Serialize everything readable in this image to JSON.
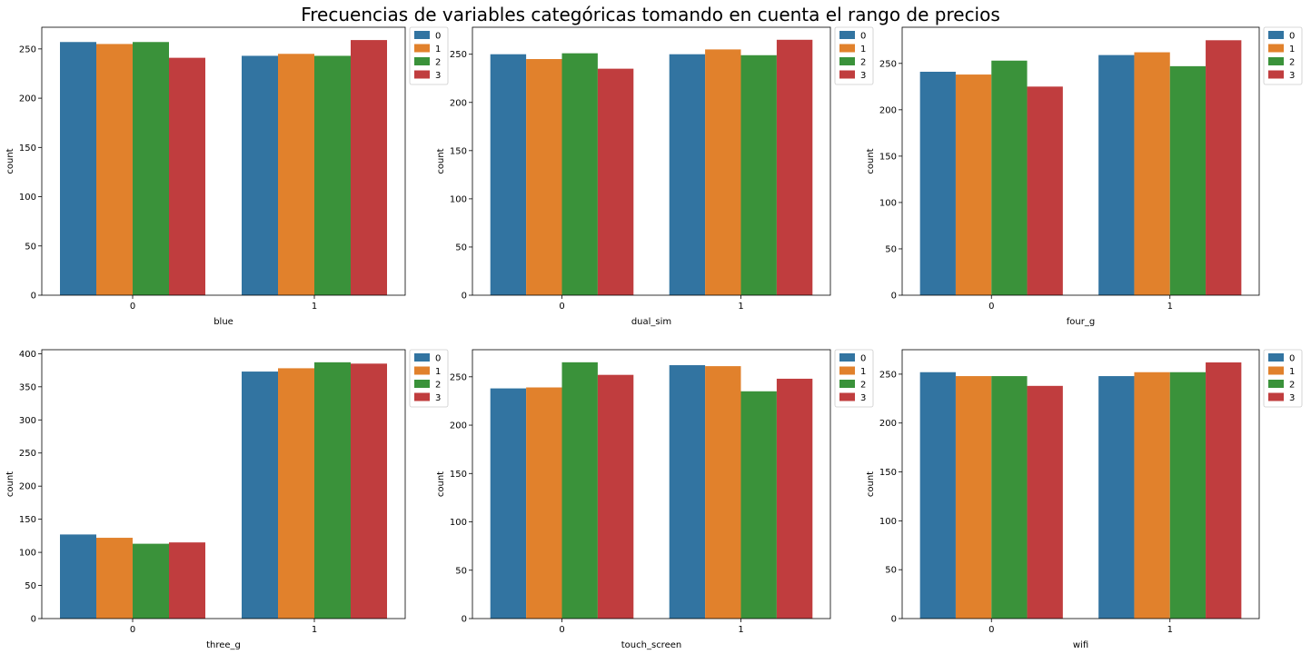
{
  "figure_title": "Frecuencias de variables categóricas tomando en cuenta el rango de precios",
  "colors": [
    "#3274a1",
    "#e1812c",
    "#3a923a",
    "#c03d3e"
  ],
  "chart_data": [
    {
      "type": "bar",
      "xlabel": "blue",
      "ylabel": "count",
      "categories": [
        "0",
        "1"
      ],
      "ylim": [
        0,
        272
      ],
      "yticks": [
        0,
        50,
        100,
        150,
        200,
        250
      ],
      "legend": {
        "placement": "outside-top-right",
        "entries": [
          "0",
          "1",
          "2",
          "3"
        ]
      },
      "series": [
        {
          "name": "0",
          "values": [
            257,
            243
          ]
        },
        {
          "name": "1",
          "values": [
            255,
            245
          ]
        },
        {
          "name": "2",
          "values": [
            257,
            243
          ]
        },
        {
          "name": "3",
          "values": [
            241,
            259
          ]
        }
      ]
    },
    {
      "type": "bar",
      "xlabel": "dual_sim",
      "ylabel": "count",
      "categories": [
        "0",
        "1"
      ],
      "ylim": [
        0,
        278
      ],
      "yticks": [
        0,
        50,
        100,
        150,
        200,
        250
      ],
      "legend": {
        "placement": "outside-top-right",
        "entries": [
          "0",
          "1",
          "2",
          "3"
        ]
      },
      "series": [
        {
          "name": "0",
          "values": [
            250,
            250
          ]
        },
        {
          "name": "1",
          "values": [
            245,
            255
          ]
        },
        {
          "name": "2",
          "values": [
            251,
            249
          ]
        },
        {
          "name": "3",
          "values": [
            235,
            265
          ]
        }
      ]
    },
    {
      "type": "bar",
      "xlabel": "four_g",
      "ylabel": "count",
      "categories": [
        "0",
        "1"
      ],
      "ylim": [
        0,
        289
      ],
      "yticks": [
        0,
        50,
        100,
        150,
        200,
        250
      ],
      "legend": {
        "placement": "outside-top-right",
        "entries": [
          "0",
          "1",
          "2",
          "3"
        ]
      },
      "series": [
        {
          "name": "0",
          "values": [
            241,
            259
          ]
        },
        {
          "name": "1",
          "values": [
            238,
            262
          ]
        },
        {
          "name": "2",
          "values": [
            253,
            247
          ]
        },
        {
          "name": "3",
          "values": [
            225,
            275
          ]
        }
      ]
    },
    {
      "type": "bar",
      "xlabel": "three_g",
      "ylabel": "count",
      "categories": [
        "0",
        "1"
      ],
      "ylim": [
        0,
        406
      ],
      "yticks": [
        0,
        50,
        100,
        150,
        200,
        250,
        300,
        350,
        400
      ],
      "legend": {
        "placement": "outside-top-right",
        "entries": [
          "0",
          "1",
          "2",
          "3"
        ]
      },
      "series": [
        {
          "name": "0",
          "values": [
            127,
            373
          ]
        },
        {
          "name": "1",
          "values": [
            122,
            378
          ]
        },
        {
          "name": "2",
          "values": [
            113,
            387
          ]
        },
        {
          "name": "3",
          "values": [
            115,
            385
          ]
        }
      ]
    },
    {
      "type": "bar",
      "xlabel": "touch_screen",
      "ylabel": "count",
      "categories": [
        "0",
        "1"
      ],
      "ylim": [
        0,
        278
      ],
      "yticks": [
        0,
        50,
        100,
        150,
        200,
        250
      ],
      "legend": {
        "placement": "outside-top-right",
        "entries": [
          "0",
          "1",
          "2",
          "3"
        ]
      },
      "series": [
        {
          "name": "0",
          "values": [
            238,
            262
          ]
        },
        {
          "name": "1",
          "values": [
            239,
            261
          ]
        },
        {
          "name": "2",
          "values": [
            265,
            235
          ]
        },
        {
          "name": "3",
          "values": [
            252,
            248
          ]
        }
      ]
    },
    {
      "type": "bar",
      "xlabel": "wifi",
      "ylabel": "count",
      "categories": [
        "0",
        "1"
      ],
      "ylim": [
        0,
        275
      ],
      "yticks": [
        0,
        50,
        100,
        150,
        200,
        250
      ],
      "legend": {
        "placement": "outside-top-right",
        "entries": [
          "0",
          "1",
          "2",
          "3"
        ]
      },
      "series": [
        {
          "name": "0",
          "values": [
            252,
            248
          ]
        },
        {
          "name": "1",
          "values": [
            248,
            252
          ]
        },
        {
          "name": "2",
          "values": [
            248,
            252
          ]
        },
        {
          "name": "3",
          "values": [
            238,
            262
          ]
        }
      ]
    }
  ]
}
